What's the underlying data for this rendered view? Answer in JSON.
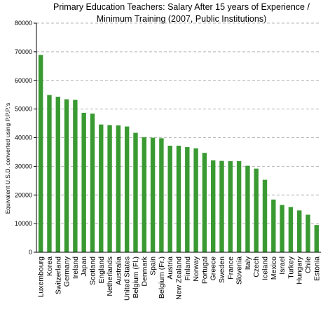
{
  "chart_data": {
    "type": "bar",
    "title_lines": [
      "Primary Education Teachers: Salary After 15 years of Experience /",
      "Minimum Training (2007, Public Institutions)"
    ],
    "xlabel": "",
    "ylabel": "Equivalent U.S.D. converted using P.P.P.'s",
    "ylim": [
      0,
      80000
    ],
    "yticks": [
      0,
      10000,
      20000,
      30000,
      40000,
      50000,
      60000,
      70000,
      80000
    ],
    "ytick_labels": [
      "0",
      "10000",
      "20000",
      "30000",
      "40000",
      "50000",
      "60000",
      "70000",
      "80000"
    ],
    "grid": true,
    "bar_color": "#3a9a32",
    "categories": [
      "Luxembourg",
      "Korea",
      "Switzerland",
      "Germany",
      "Ireland",
      "Japan",
      "Scotland",
      "England",
      "Netherlands",
      "Australia",
      "United States",
      "Belgium (Fl.)",
      "Denmark",
      "Spain",
      "Belgium (Fr.)",
      "Austria",
      "New Zealand",
      "Finland",
      "Norway",
      "Portugal",
      "Greece",
      "Sweden",
      "France",
      "Slovenia",
      "Italy",
      "Czech",
      "Iceland",
      "Mexico",
      "Israel",
      "Turkey",
      "Hungary",
      "Chile",
      "Estonia"
    ],
    "values": [
      68900,
      54900,
      54300,
      53400,
      53200,
      48700,
      48400,
      44600,
      44400,
      44300,
      43900,
      41700,
      40200,
      40000,
      39800,
      37200,
      37200,
      36700,
      36300,
      34700,
      32100,
      31900,
      31800,
      31800,
      30200,
      29200,
      25300,
      18400,
      16500,
      15800,
      14600,
      13100,
      9500
    ]
  }
}
